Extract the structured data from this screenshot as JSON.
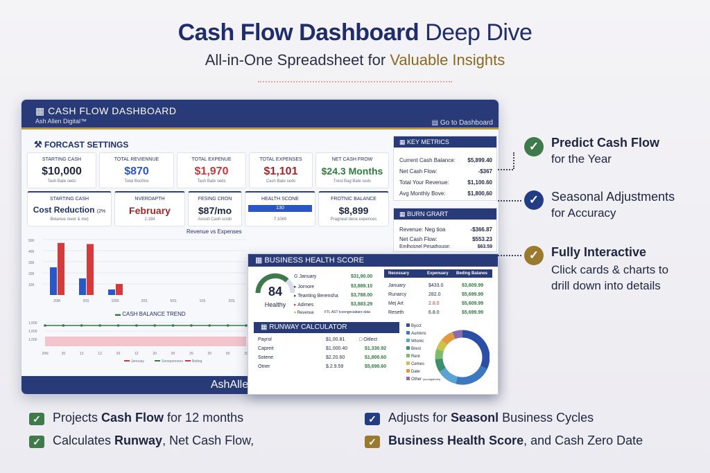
{
  "header": {
    "title_bold": "Cash Flow Dashboard",
    "title_light": "Deep Dive",
    "subtitle_main": "All-in-One Spreadsheet for",
    "subtitle_accent": "Valuable Insights"
  },
  "dashboard": {
    "title": "CASH FLOW DASHBOARD",
    "brand": "Ash Allen Digital™",
    "go_link": "Go to Dashboard",
    "forecast_heading": "FORCAST SETTINGS",
    "cards_row1": [
      {
        "label": "STARTING CASH",
        "value": "$10,000",
        "note": "Tash Bate seds",
        "color": "#1d2540"
      },
      {
        "label": "TOTAL REVIENNUE",
        "value": "$870",
        "note": "Total Bocthre",
        "color": "#2a56c6"
      },
      {
        "label": "TOTAL EXPENUE",
        "value": "$1,970",
        "note": "Tash Bate seds",
        "color": "#c43a3a"
      },
      {
        "label": "TOTAL EXPENSES",
        "value": "$1,101",
        "note": "Cash Bate seds",
        "color": "#9a2a2a"
      },
      {
        "label": "NET CASH FROW",
        "value": "$24.3 Months",
        "note": "Trest Bag Bate seds",
        "color": "#2f7a3d"
      }
    ],
    "cards_row2": [
      {
        "label": "STARTING CASH",
        "value": "Cost Reduction",
        "extra": "(2%",
        "note": "Betanue rever & me)",
        "color": "#1e2d6b"
      },
      {
        "label": "NVERDAPTH",
        "value": "February",
        "note": "2.184",
        "color": "#9a2a2a"
      },
      {
        "label": "FESING CRON",
        "value": "$87/mo",
        "note": "Assort Cash scrdn",
        "color": "#1d2540"
      },
      {
        "label": "HEALTH SCONE",
        "value": "130",
        "note": "7.1060",
        "color": "#1d2540"
      },
      {
        "label": "FROTNIC BALANCE",
        "value": "$8,899",
        "note": "Pragneat dene expences",
        "color": "#1d2540"
      }
    ],
    "key_metrics": {
      "title": "KEY METRICS",
      "rows": [
        {
          "label": "Current Cash Balance:",
          "value": "$5,899.40"
        },
        {
          "label": "Net Cash Flow:",
          "value": "-$367"
        },
        {
          "label": "Total Your Revenue:",
          "value": "$1,100.60"
        },
        {
          "label": "Avg Monthly Bove:",
          "value": "$1,800,60"
        }
      ]
    },
    "burn_chart": {
      "title": "BURN GRART",
      "rows": [
        {
          "label": "Revenue: Neg tioa",
          "value": "-$366.87"
        },
        {
          "label": "Net Cash Flow:",
          "value": "$553.23"
        },
        {
          "label": "Emlhosnel Pesathouse:",
          "value": "$63.59"
        }
      ]
    },
    "footer": "AshAllenDigital.com"
  },
  "chart_data": [
    {
      "type": "bar",
      "title": "Revenue vs Expenses",
      "categories": [
        "20M",
        "20S",
        "1000",
        "20S",
        "50S",
        "10S",
        "20S"
      ],
      "series": [
        {
          "values": [
            250,
            150,
            50,
            0,
            0,
            0,
            0
          ],
          "color": "#2a56c6"
        },
        {
          "values": [
            470,
            460,
            100,
            0,
            0,
            0,
            0
          ],
          "color": "#d63a3a"
        }
      ],
      "ylim": [
        0,
        500
      ],
      "yticks": [
        "500",
        "400",
        "300",
        "200",
        "100"
      ],
      "grid": true
    },
    {
      "type": "line",
      "title": "CASH BALANCE TREND",
      "x": [
        "20N",
        "20",
        "12",
        "12",
        "20",
        "12",
        "20",
        "20",
        "20",
        "20",
        "50",
        "20"
      ],
      "y": [
        1500,
        1500,
        1500,
        1500,
        1500,
        1500,
        1500,
        1500,
        1500,
        1500,
        1500,
        1500
      ],
      "yticks": [
        "1,000",
        "1,000",
        "1,000"
      ],
      "legend": [
        "Jannuay",
        "Soneponnees",
        "Betteg"
      ]
    }
  ],
  "business_health": {
    "title": "BUSINESS HEALTH SCORE",
    "score": "84",
    "score_label": "Healthy",
    "list": [
      {
        "name": "January",
        "v1": "$31,90.00",
        "v2": ""
      },
      {
        "name": "Jornore",
        "v1": "$3,889.10",
        "v2": ""
      },
      {
        "name": "Teanting Berensha",
        "v1": "$3,788.00",
        "v2": ""
      },
      {
        "name": "Adimes",
        "v1": "$3,883.29",
        "v2": ""
      },
      {
        "name": "Revenue",
        "v1": "FTL AST",
        "v2": "tccengeciabare data"
      }
    ],
    "table": {
      "headers": [
        "Necessary",
        "Expenuary",
        "Beding Balanes"
      ],
      "rows": [
        [
          "January",
          "$433.0",
          "$3,609.99"
        ],
        [
          "Runarcy",
          "282.0",
          "$5,699.99"
        ],
        [
          "Mej Art",
          "2.8.0",
          "$5,609.99"
        ],
        [
          "Reseth",
          "6.8.0",
          "$5,699.99"
        ]
      ]
    },
    "runway": {
      "title": "RUNWAY CALCULATOR",
      "rows": [
        [
          "Payrol",
          "$1,00.81",
          "Oitlect"
        ],
        [
          "Capreit",
          "$1,000.40",
          "$1,330.92"
        ],
        [
          "Sotene",
          "$2.20.60",
          "$1,800.60"
        ],
        [
          "Otner",
          "$.2.9.59",
          "$5,690.60"
        ]
      ]
    },
    "donut": {
      "legend": [
        "Bycct",
        "Aumkns",
        "Wtonic",
        "Brest",
        "Rent",
        "Cemes",
        "Date",
        "Other"
      ],
      "legend_note": "(scomgalures)",
      "values": [
        32,
        22,
        12,
        8,
        6,
        6,
        8,
        6
      ],
      "colors": [
        "#2b4fa6",
        "#3c78c0",
        "#5aa4d4",
        "#3c8f6a",
        "#7dbb6b",
        "#c9c34e",
        "#e39a3a",
        "#8b6bb0"
      ]
    }
  },
  "features": [
    {
      "title": "Predict Cash Flow",
      "sub": "for the Year",
      "color": "#3e7a4a"
    },
    {
      "title": "Seasonal Adjustments",
      "sub": "for Accuracy",
      "color": "#223d84"
    },
    {
      "title": "Fully Interactive",
      "sub1": "Click cards & charts to",
      "sub2": "drill down into details",
      "color": "#9a7a2e"
    }
  ],
  "bullets": [
    {
      "pre": "Projects ",
      "bold": "Cash Flow",
      "post": " for 12 months",
      "color": "#3e7a4a"
    },
    {
      "pre": "Adjusts for ",
      "bold": "Seasonl",
      "post": " Business Cycles",
      "color": "#223d84"
    },
    {
      "pre": "Calculates ",
      "bold": "Runway",
      "post": ", Net Cash Flow,",
      "color": "#3e7a4a"
    },
    {
      "pre": "",
      "bold": "Business Health Score",
      "post": ", and Cash Zero Date",
      "color": "#9a7a2e"
    }
  ]
}
